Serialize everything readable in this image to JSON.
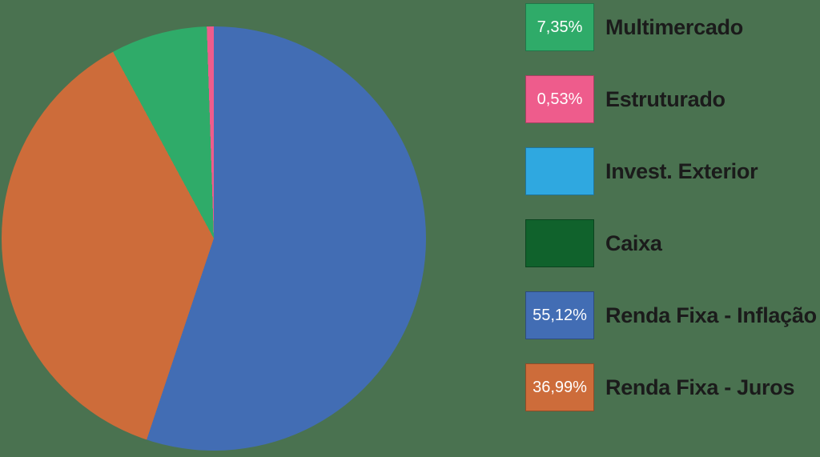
{
  "canvas": {
    "background_color": "#4A7250"
  },
  "chart_data": {
    "type": "pie",
    "title": "",
    "legend_position": "right",
    "start_angle_deg": 0,
    "direction": "clockwise",
    "pct_text_color": "#FFFFFF",
    "label_text_color": "#1B1B1B",
    "slices": [
      {
        "label": "Multimercado",
        "value": 7.35,
        "pct_label": "7,35%",
        "color": "#2FAB69"
      },
      {
        "label": "Estruturado",
        "value": 0.53,
        "pct_label": "0,53%",
        "color": "#EE5C8C"
      },
      {
        "label": "Invest. Exterior",
        "value": 0,
        "pct_label": "",
        "color": "#2FA8E0"
      },
      {
        "label": "Caixa",
        "value": 0,
        "pct_label": "",
        "color": "#10622C"
      },
      {
        "label": "Renda Fixa - Inflação",
        "value": 55.12,
        "pct_label": "55,12%",
        "color": "#426DB4"
      },
      {
        "label": "Renda Fixa - Juros",
        "value": 36.99,
        "pct_label": "36,99%",
        "color": "#CD6C3A"
      }
    ],
    "draw_order": [
      4,
      5,
      0,
      1,
      2,
      3
    ]
  }
}
